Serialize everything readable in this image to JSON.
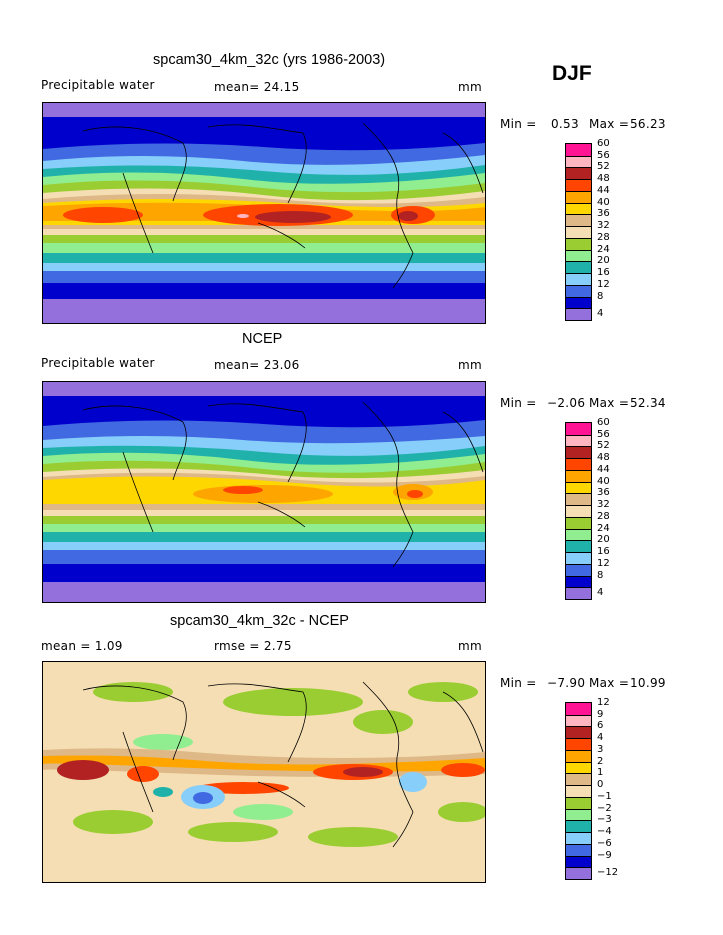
{
  "season": "DJF",
  "panels": [
    {
      "title": "spcam30_4km_32c (yrs 1986-2003)",
      "left_label": "Precipitable water",
      "mid_label": "mean=  24.15",
      "unit": "mm",
      "min_label": "Min =",
      "min_value": "0.53",
      "max_label": "Max =",
      "max_value": "56.23",
      "colors": [
        "#9370db",
        "#0000cd",
        "#4169e1",
        "#87cefa",
        "#20b2aa",
        "#90ee90",
        "#9acd32",
        "#f5deb3",
        "#deb887",
        "#ffd700",
        "#ffa500",
        "#ff4500",
        "#b22222",
        "#ffb6c1",
        "#ff1493"
      ],
      "levels": [
        "4",
        "8",
        "12",
        "16",
        "20",
        "24",
        "28",
        "32",
        "36",
        "40",
        "44",
        "48",
        "52",
        "56",
        "60"
      ]
    },
    {
      "title": "NCEP",
      "left_label": "Precipitable water",
      "mid_label": "mean=  23.06",
      "unit": "mm",
      "min_label": "Min =",
      "min_value": "−2.06",
      "max_label": "Max =",
      "max_value": "52.34",
      "colors": [
        "#9370db",
        "#0000cd",
        "#4169e1",
        "#87cefa",
        "#20b2aa",
        "#90ee90",
        "#9acd32",
        "#f5deb3",
        "#deb887",
        "#ffd700",
        "#ffa500",
        "#ff4500",
        "#b22222",
        "#ffb6c1",
        "#ff1493"
      ],
      "levels": [
        "4",
        "8",
        "12",
        "16",
        "20",
        "24",
        "28",
        "32",
        "36",
        "40",
        "44",
        "48",
        "52",
        "56",
        "60"
      ]
    },
    {
      "title": "spcam30_4km_32c - NCEP",
      "left_label": "mean =    1.09",
      "mid_label": "rmse =    2.75",
      "unit": "mm",
      "min_label": "Min =",
      "min_value": "−7.90",
      "max_label": "Max =",
      "max_value": "10.99",
      "colors": [
        "#9370db",
        "#0000cd",
        "#4169e1",
        "#87cefa",
        "#20b2aa",
        "#90ee90",
        "#9acd32",
        "#f5deb3",
        "#deb887",
        "#ffd700",
        "#ffa500",
        "#ff4500",
        "#b22222",
        "#ffb6c1",
        "#ff1493"
      ],
      "levels": [
        "−12",
        "−9",
        "−6",
        "−4",
        "−3",
        "−2",
        "−1",
        "0",
        "1",
        "2",
        "3",
        "4",
        "6",
        "9",
        "12"
      ]
    }
  ]
}
